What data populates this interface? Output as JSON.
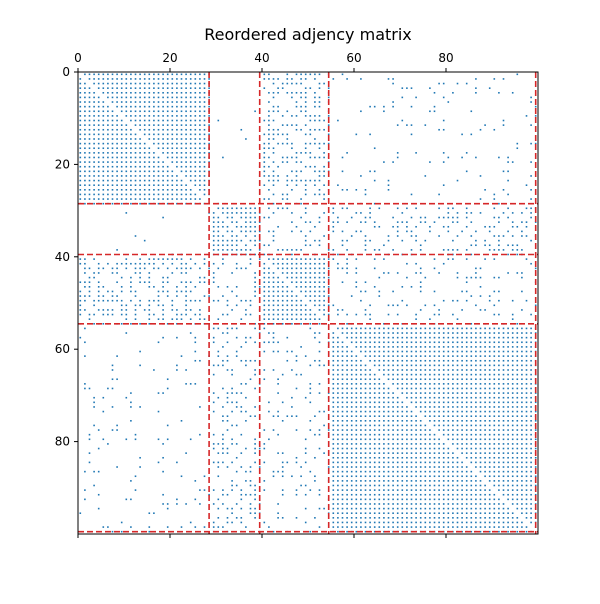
{
  "chart_data": {
    "type": "heatmap",
    "subtype": "spy-matrix",
    "title": "Reordered adjency matrix",
    "xlabel": "",
    "ylabel": "",
    "matrix_size": 100,
    "xlim": [
      0,
      100
    ],
    "ylim": [
      100,
      0
    ],
    "x_ticks": [
      0,
      20,
      40,
      60,
      80
    ],
    "y_ticks": [
      0,
      20,
      40,
      60,
      80
    ],
    "x_tick_position": "top",
    "grid": false,
    "marker_color": "#1f77b4",
    "boundary_color": "#d62728",
    "boundary_style": "dashed",
    "cluster_boundaries": [
      28.5,
      39.5,
      54.5,
      99.5
    ],
    "clusters": [
      {
        "start": 0,
        "end": 28
      },
      {
        "start": 29,
        "end": 39
      },
      {
        "start": 40,
        "end": 54
      },
      {
        "start": 55,
        "end": 99
      }
    ],
    "block_densities": [
      [
        1.0,
        0.05,
        0.5,
        0.1
      ],
      [
        0.05,
        0.95,
        0.25,
        0.35
      ],
      [
        0.5,
        0.25,
        1.0,
        0.25
      ],
      [
        0.1,
        0.35,
        0.25,
        1.0
      ]
    ],
    "diagonal_empty": true
  }
}
